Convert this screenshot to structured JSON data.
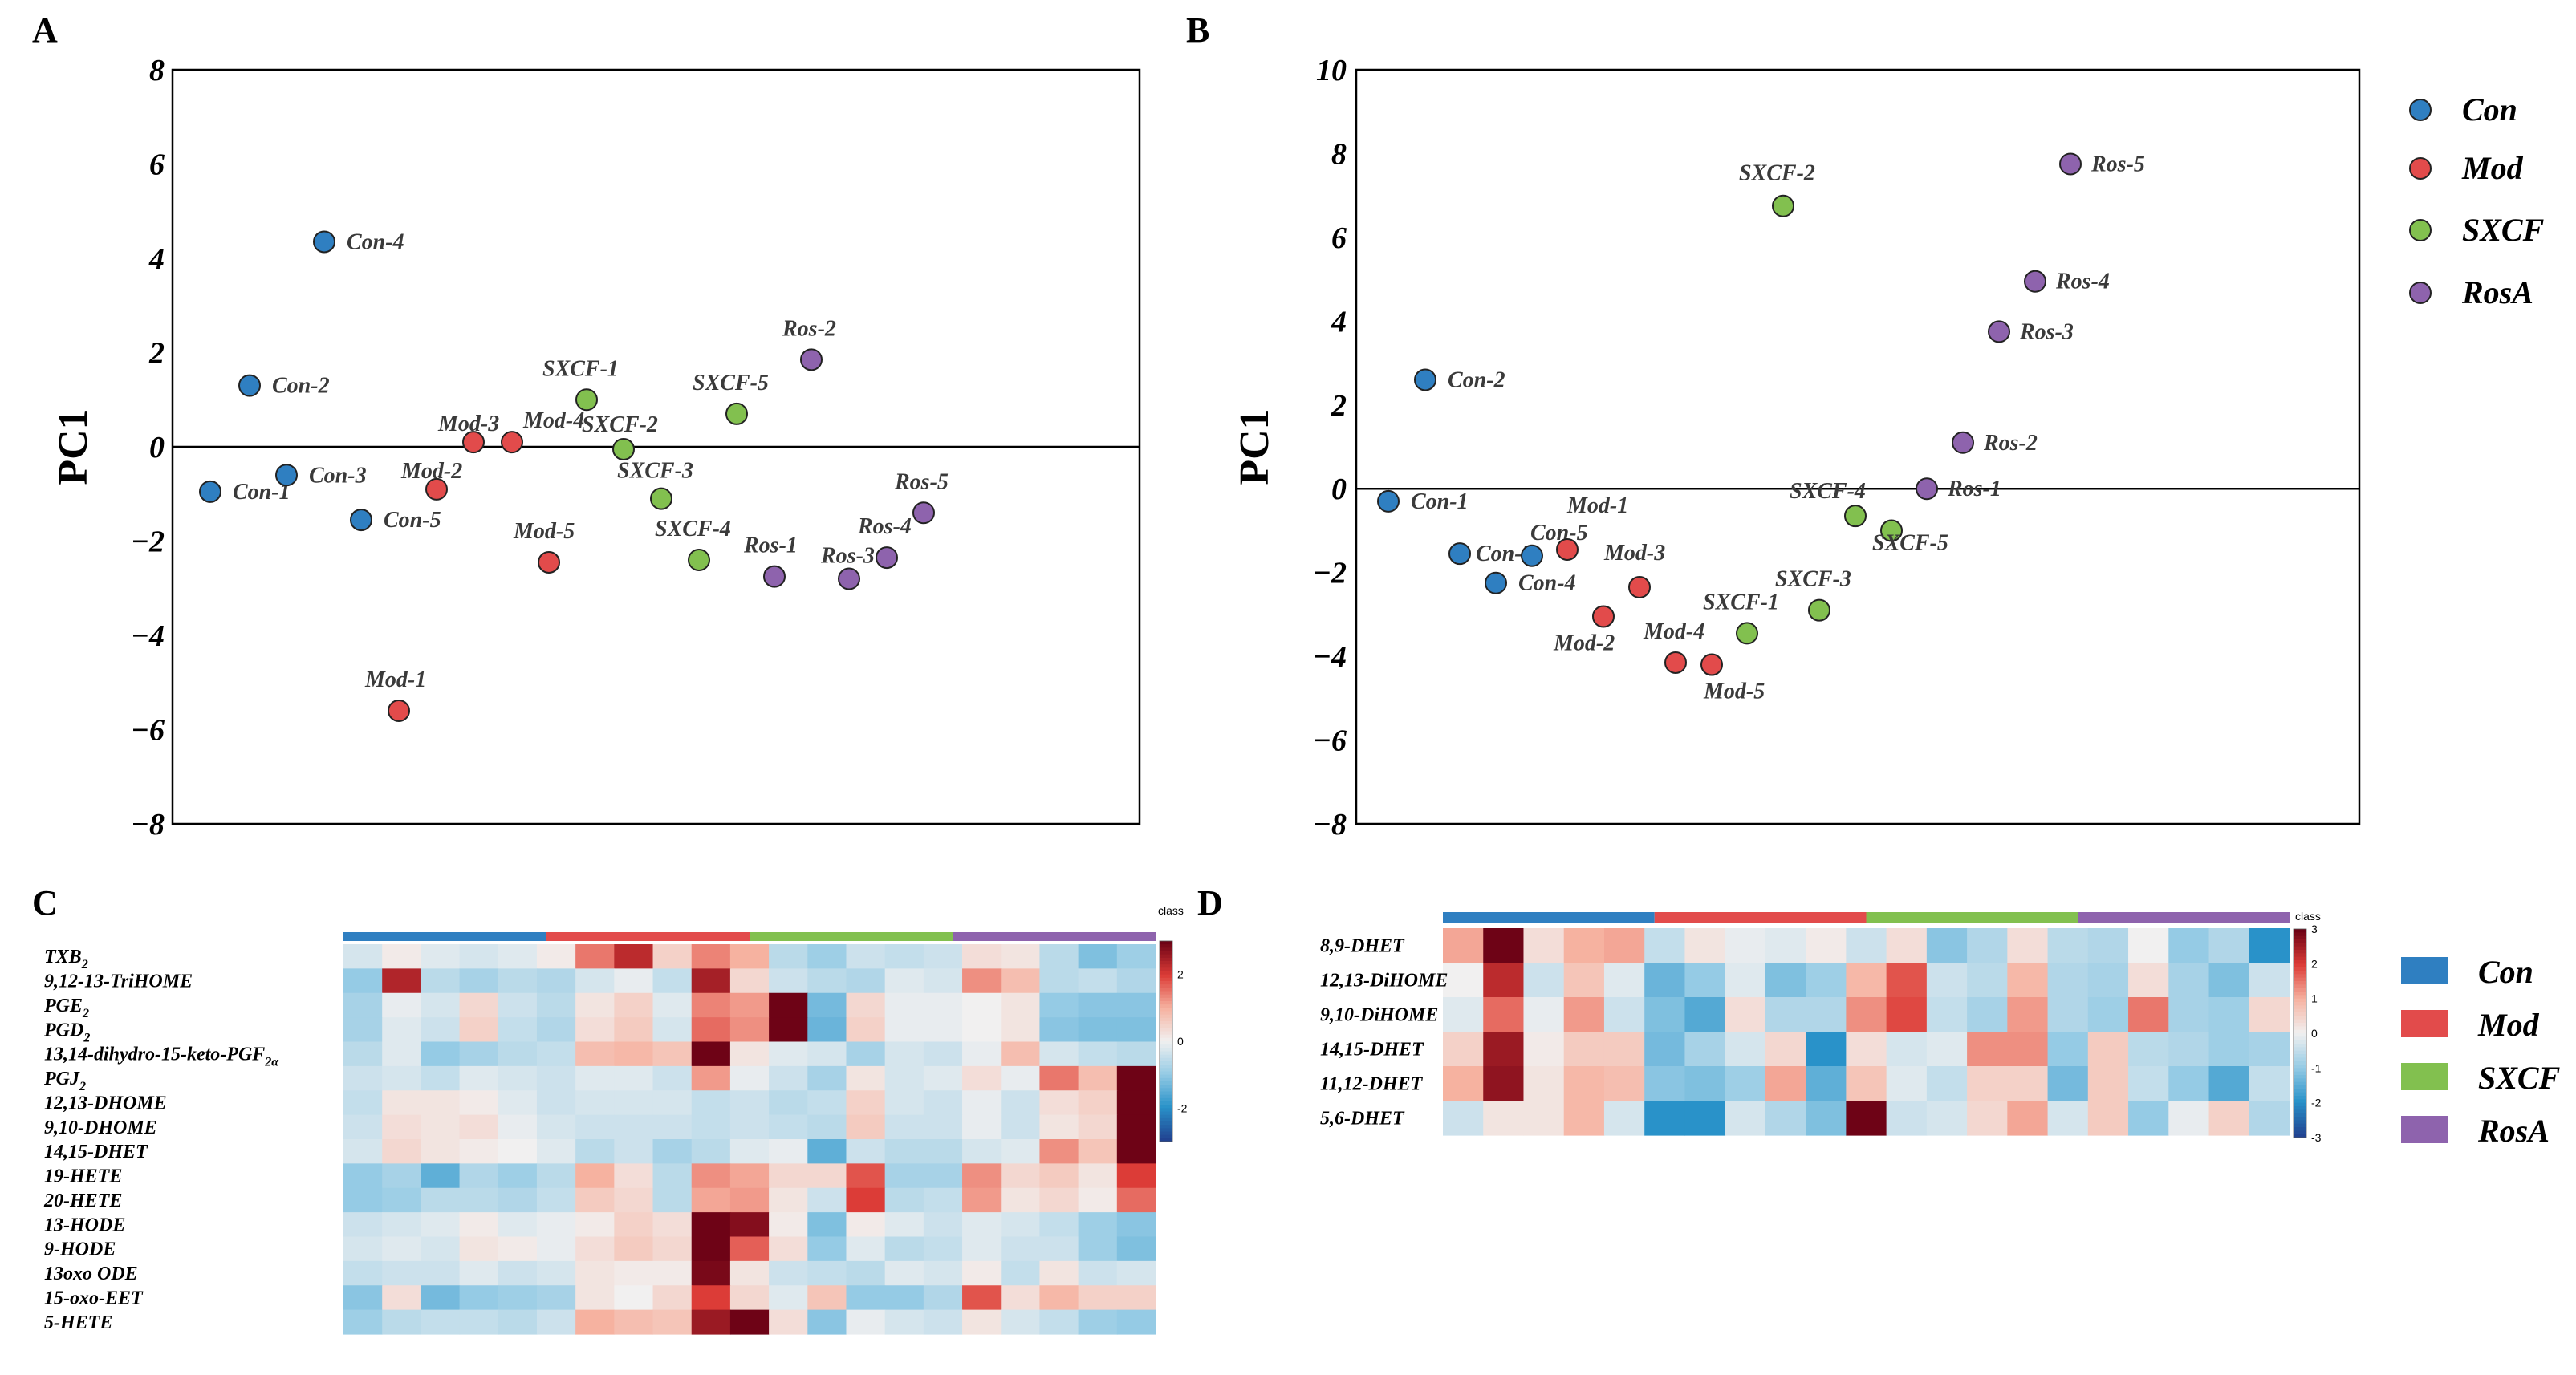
{
  "panel_letters": {
    "a": "A",
    "b": "B",
    "c": "C",
    "d": "D"
  },
  "colors": {
    "Con": "#2f7fc1",
    "Mod": "#e24b4b",
    "SXCF": "#82c04f",
    "RosA": "#8e63ad",
    "ConBar": "#2f7fc1",
    "ModBar": "#e24b4b",
    "SXCFBar": "#82c04f",
    "RosABar": "#8e63ad"
  },
  "legend": {
    "scatter": [
      "Con",
      "Mod",
      "SXCF",
      "RosA"
    ],
    "heatmap": [
      "Con",
      "Mod",
      "SXCF",
      "RosA"
    ]
  },
  "chart_data": [
    {
      "id": "A",
      "type": "scatter",
      "title": "",
      "ylabel": "PC1",
      "xlabel": "",
      "ylim": [
        -8,
        8
      ],
      "yticks": [
        "8",
        "6",
        "4",
        "2",
        "0",
        "−2",
        "−4",
        "−6",
        "−8"
      ],
      "points": [
        {
          "label": "Con-1",
          "group": "Con",
          "x": 1,
          "y": -0.95
        },
        {
          "label": "Con-2",
          "group": "Con",
          "x": 2,
          "y": 1.3
        },
        {
          "label": "Con-3",
          "group": "Con",
          "x": 3,
          "y": -0.6
        },
        {
          "label": "Con-4",
          "group": "Con",
          "x": 4,
          "y": 4.35
        },
        {
          "label": "Con-5",
          "group": "Con",
          "x": 5,
          "y": -1.55
        },
        {
          "label": "Mod-1",
          "group": "Mod",
          "x": 6,
          "y": -5.6
        },
        {
          "label": "Mod-2",
          "group": "Mod",
          "x": 7,
          "y": -0.9
        },
        {
          "label": "Mod-3",
          "group": "Mod",
          "x": 8,
          "y": 0.1
        },
        {
          "label": "Mod-4",
          "group": "Mod",
          "x": 9,
          "y": 0.1
        },
        {
          "label": "Mod-5",
          "group": "Mod",
          "x": 10,
          "y": -2.45
        },
        {
          "label": "SXCF-1",
          "group": "SXCF",
          "x": 11,
          "y": 1.0
        },
        {
          "label": "SXCF-2",
          "group": "SXCF",
          "x": 12,
          "y": -0.05
        },
        {
          "label": "SXCF-3",
          "group": "SXCF",
          "x": 13,
          "y": -1.1
        },
        {
          "label": "SXCF-4",
          "group": "SXCF",
          "x": 14,
          "y": -2.4
        },
        {
          "label": "SXCF-5",
          "group": "SXCF",
          "x": 15,
          "y": 0.7
        },
        {
          "label": "Ros-1",
          "group": "RosA",
          "x": 16,
          "y": -2.75
        },
        {
          "label": "Ros-2",
          "group": "RosA",
          "x": 17,
          "y": 1.85
        },
        {
          "label": "Ros-3",
          "group": "RosA",
          "x": 18,
          "y": -2.8
        },
        {
          "label": "Ros-4",
          "group": "RosA",
          "x": 19,
          "y": -2.35
        },
        {
          "label": "Ros-5",
          "group": "RosA",
          "x": 20,
          "y": -1.4
        }
      ]
    },
    {
      "id": "B",
      "type": "scatter",
      "title": "",
      "ylabel": "PC1",
      "xlabel": "",
      "ylim": [
        -8,
        10
      ],
      "yticks": [
        "10",
        "8",
        "6",
        "4",
        "2",
        "0",
        "−2",
        "−4",
        "−6",
        "−8"
      ],
      "points": [
        {
          "label": "Con-1",
          "group": "Con",
          "x": 1,
          "y": -0.3
        },
        {
          "label": "Con-2",
          "group": "Con",
          "x": 2,
          "y": 2.6
        },
        {
          "label": "Con-3",
          "group": "Con",
          "x": 3,
          "y": -1.55
        },
        {
          "label": "Con-4",
          "group": "Con",
          "x": 4,
          "y": -2.25
        },
        {
          "label": "Con-5",
          "group": "Con",
          "x": 5,
          "y": -1.6
        },
        {
          "label": "Mod-1",
          "group": "Mod",
          "x": 6,
          "y": -1.45
        },
        {
          "label": "Mod-2",
          "group": "Mod",
          "x": 7,
          "y": -3.05
        },
        {
          "label": "Mod-3",
          "group": "Mod",
          "x": 8,
          "y": -2.35
        },
        {
          "label": "Mod-4",
          "group": "Mod",
          "x": 9,
          "y": -4.15
        },
        {
          "label": "Mod-5",
          "group": "Mod",
          "x": 10,
          "y": -4.2
        },
        {
          "label": "SXCF-1",
          "group": "SXCF",
          "x": 11,
          "y": -3.45
        },
        {
          "label": "SXCF-2",
          "group": "SXCF",
          "x": 12,
          "y": 6.75
        },
        {
          "label": "SXCF-3",
          "group": "SXCF",
          "x": 13,
          "y": -2.9
        },
        {
          "label": "SXCF-4",
          "group": "SXCF",
          "x": 14,
          "y": -0.65
        },
        {
          "label": "SXCF-5",
          "group": "SXCF",
          "x": 15,
          "y": -1.0
        },
        {
          "label": "Ros-1",
          "group": "RosA",
          "x": 16,
          "y": 0.0
        },
        {
          "label": "Ros-2",
          "group": "RosA",
          "x": 17,
          "y": 1.1
        },
        {
          "label": "Ros-3",
          "group": "RosA",
          "x": 18,
          "y": 3.75
        },
        {
          "label": "Ros-4",
          "group": "RosA",
          "x": 19,
          "y": 4.95
        },
        {
          "label": "Ros-5",
          "group": "RosA",
          "x": 20,
          "y": 7.75
        }
      ]
    },
    {
      "id": "C",
      "type": "heatmap",
      "class_label": "class",
      "scale_ticks": [
        "2",
        "0",
        "-2"
      ],
      "scale_range": [
        -3,
        3
      ],
      "groups": [
        "Con",
        "Mod",
        "SXCF",
        "RosA"
      ],
      "rows": [
        "TXB2",
        "9,12-13-TriHOME",
        "PGE2",
        "PGD2",
        "13,14-dihydro-15-keto-PGF2α",
        "PGJ2",
        "12,13-DHOME",
        "9,10-DHOME",
        "14,15-DHET",
        "19-HETE",
        "20-HETE",
        "13-HODE",
        "9-HODE",
        "13oxo ODE",
        "15-oxo-EET",
        "5-HETE"
      ],
      "values": [
        [
          -0.3,
          0.1,
          -0.2,
          -0.3,
          -0.2,
          0.1,
          1.5,
          2.3,
          0.5,
          1.4,
          1.0,
          -0.6,
          -0.9,
          -0.4,
          -0.5,
          -0.4,
          0.3,
          0.2,
          -0.6,
          -1.2,
          -0.9
        ],
        [
          -1.0,
          2.4,
          -0.6,
          -0.8,
          -0.6,
          -0.7,
          -0.3,
          -0.1,
          -0.5,
          2.5,
          0.4,
          -0.4,
          -0.6,
          -0.7,
          -0.2,
          -0.3,
          1.3,
          0.8,
          -0.6,
          -0.5,
          -0.7
        ],
        [
          -0.8,
          -0.1,
          -0.3,
          0.4,
          -0.4,
          -0.6,
          0.2,
          0.5,
          -0.2,
          1.4,
          1.2,
          3.5,
          -1.3,
          0.4,
          -0.1,
          -0.1,
          0.0,
          0.2,
          -1.0,
          -1.1,
          -1.1
        ],
        [
          -0.8,
          -0.2,
          -0.4,
          0.5,
          -0.5,
          -0.7,
          0.3,
          0.6,
          -0.3,
          1.6,
          1.3,
          3.8,
          -1.4,
          0.5,
          -0.1,
          -0.1,
          0.0,
          0.2,
          -1.1,
          -1.2,
          -1.2
        ],
        [
          -0.6,
          -0.2,
          -1.0,
          -0.8,
          -0.6,
          -0.5,
          0.8,
          0.9,
          0.7,
          3.6,
          0.2,
          -0.2,
          -0.3,
          -0.8,
          -0.3,
          -0.4,
          -0.1,
          0.8,
          -0.3,
          -0.5,
          -0.6
        ],
        [
          -0.4,
          -0.3,
          -0.5,
          -0.2,
          -0.3,
          -0.4,
          -0.2,
          -0.2,
          -0.4,
          1.2,
          -0.1,
          -0.4,
          -0.8,
          0.2,
          -0.3,
          -0.2,
          0.3,
          -0.1,
          1.5,
          0.8,
          3.4
        ],
        [
          -0.5,
          0.2,
          0.2,
          0.1,
          -0.2,
          -0.4,
          -0.3,
          -0.3,
          -0.3,
          -0.5,
          -0.4,
          -0.6,
          -0.5,
          0.5,
          -0.3,
          -0.4,
          -0.1,
          -0.4,
          0.3,
          0.5,
          4.5
        ],
        [
          -0.4,
          0.3,
          0.2,
          0.3,
          -0.1,
          -0.3,
          -0.4,
          -0.4,
          -0.4,
          -0.5,
          -0.4,
          -0.5,
          -0.6,
          0.6,
          -0.4,
          -0.4,
          -0.1,
          -0.4,
          0.2,
          0.4,
          4.8
        ],
        [
          -0.3,
          0.4,
          0.2,
          0.1,
          0.0,
          -0.2,
          -0.6,
          -0.4,
          -0.8,
          -0.6,
          -0.2,
          -0.1,
          -1.5,
          -0.4,
          -0.6,
          -0.6,
          -0.3,
          -0.2,
          1.3,
          0.7,
          3.5
        ],
        [
          -1.0,
          -0.8,
          -1.5,
          -0.7,
          -0.9,
          -0.6,
          1.0,
          0.3,
          -0.6,
          1.3,
          1.1,
          0.4,
          0.4,
          1.8,
          -0.8,
          -0.8,
          1.3,
          0.4,
          0.6,
          0.2,
          2.0
        ],
        [
          -1.0,
          -0.9,
          -0.6,
          -0.6,
          -0.7,
          -0.5,
          0.6,
          0.4,
          -0.6,
          1.1,
          1.2,
          0.2,
          -0.4,
          2.0,
          -0.6,
          -0.5,
          1.2,
          0.2,
          0.4,
          0.1,
          1.6
        ],
        [
          -0.4,
          -0.3,
          -0.2,
          0.1,
          -0.2,
          -0.1,
          0.1,
          0.5,
          0.3,
          3.0,
          2.8,
          0.1,
          -1.2,
          0.1,
          -0.2,
          -0.4,
          -0.2,
          -0.3,
          -0.5,
          -0.9,
          -1.1
        ],
        [
          -0.3,
          -0.2,
          -0.3,
          0.2,
          0.1,
          -0.1,
          0.3,
          0.6,
          0.4,
          3.2,
          1.7,
          0.3,
          -1.0,
          -0.2,
          -0.6,
          -0.5,
          -0.2,
          -0.4,
          -0.4,
          -0.9,
          -1.2
        ],
        [
          -0.5,
          -0.4,
          -0.4,
          -0.2,
          -0.4,
          -0.3,
          0.2,
          0.1,
          0.1,
          2.9,
          0.2,
          -0.4,
          -0.5,
          -0.6,
          -0.2,
          -0.3,
          0.1,
          -0.5,
          0.2,
          -0.4,
          -0.3
        ],
        [
          -1.1,
          0.3,
          -1.3,
          -1.0,
          -0.9,
          -0.8,
          0.2,
          0.0,
          0.4,
          2.0,
          0.4,
          -0.2,
          0.7,
          -1.0,
          -1.0,
          -0.7,
          1.8,
          0.3,
          0.9,
          0.5,
          0.5
        ],
        [
          -0.9,
          -0.6,
          -0.5,
          -0.5,
          -0.6,
          -0.4,
          1.0,
          0.8,
          0.7,
          2.6,
          3.1,
          0.3,
          -1.1,
          -0.1,
          -0.3,
          -0.4,
          0.2,
          -0.3,
          -0.5,
          -0.9,
          -1.0
        ]
      ]
    },
    {
      "id": "D",
      "type": "heatmap",
      "class_label": "class",
      "scale_ticks": [
        "3",
        "2",
        "1",
        "0",
        "-1",
        "-2",
        "-3"
      ],
      "scale_range": [
        -3,
        3
      ],
      "groups": [
        "Con",
        "Mod",
        "SXCF",
        "RosA"
      ],
      "rows": [
        "8,9-DHET",
        "12,13-DiHOME",
        "9,10-DiHOME",
        "14,15-DHET",
        "11,12-DHET",
        "5,6-DHET"
      ],
      "values": [
        [
          1.1,
          3.5,
          0.3,
          1.0,
          1.1,
          -0.5,
          0.2,
          -0.1,
          -0.2,
          0.1,
          -0.4,
          0.3,
          -1.1,
          -0.7,
          0.3,
          -0.6,
          -0.7,
          0.0,
          -1.0,
          -0.7,
          -2.0
        ],
        [
          0.0,
          2.3,
          -0.4,
          0.7,
          -0.2,
          -1.4,
          -1.0,
          -0.2,
          -1.2,
          -0.9,
          0.9,
          1.8,
          -0.4,
          -0.6,
          0.9,
          -0.7,
          -0.8,
          0.3,
          -0.8,
          -1.2,
          -0.4
        ],
        [
          -0.2,
          1.6,
          -0.1,
          1.2,
          -0.4,
          -1.2,
          -1.6,
          0.3,
          -0.7,
          -0.7,
          1.3,
          1.9,
          -0.5,
          -0.8,
          1.2,
          -0.7,
          -0.9,
          1.5,
          -0.8,
          -0.9,
          0.4
        ],
        [
          0.5,
          2.6,
          0.1,
          0.6,
          0.6,
          -1.3,
          -0.8,
          -0.3,
          0.4,
          -2.0,
          0.3,
          -0.3,
          -0.2,
          1.3,
          1.3,
          -1.0,
          0.6,
          -0.6,
          -0.7,
          -0.9,
          -0.8
        ],
        [
          1.0,
          2.7,
          0.2,
          0.9,
          0.8,
          -1.1,
          -1.2,
          -0.9,
          1.1,
          -1.5,
          0.7,
          -0.2,
          -0.5,
          0.5,
          0.5,
          -1.3,
          0.6,
          -0.5,
          -1.0,
          -1.6,
          -0.5
        ],
        [
          -0.4,
          0.2,
          0.2,
          0.9,
          -0.3,
          -2.0,
          -2.0,
          -0.3,
          -0.7,
          -1.2,
          3.6,
          -0.4,
          -0.3,
          0.4,
          1.1,
          -0.3,
          0.6,
          -1.0,
          -0.1,
          0.5,
          -0.7
        ]
      ]
    }
  ]
}
